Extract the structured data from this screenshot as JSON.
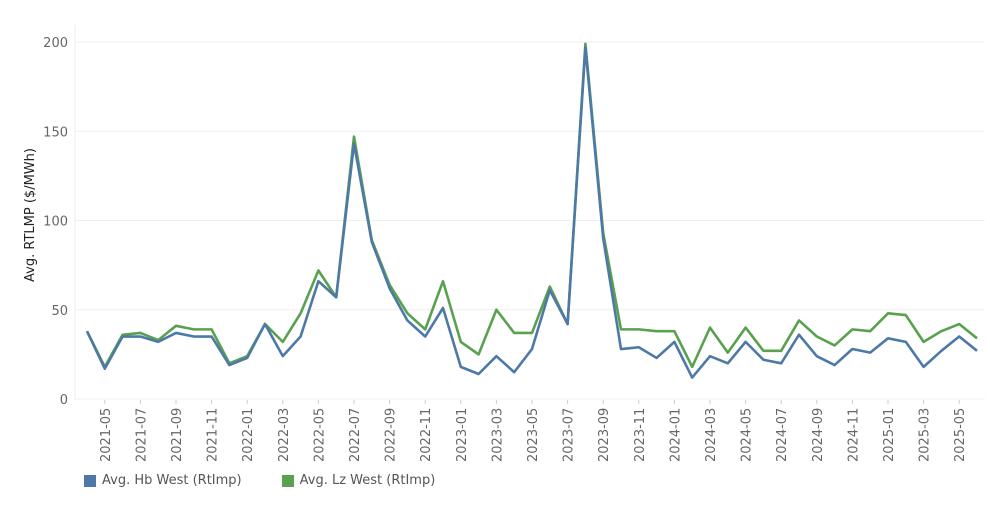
{
  "chart_data": {
    "type": "line",
    "title": "",
    "xlabel": "",
    "ylabel": "Avg. RTLMP ($/MWh)",
    "ylim": [
      0,
      200
    ],
    "yticks": [
      0,
      50,
      100,
      150,
      200
    ],
    "grid": true,
    "legend_position": "bottom-left",
    "x": [
      "2021-04",
      "2021-05",
      "2021-06",
      "2021-07",
      "2021-08",
      "2021-09",
      "2021-10",
      "2021-11",
      "2021-12",
      "2022-01",
      "2022-02",
      "2022-03",
      "2022-04",
      "2022-05",
      "2022-06",
      "2022-07",
      "2022-08",
      "2022-09",
      "2022-10",
      "2022-11",
      "2022-12",
      "2023-01",
      "2023-02",
      "2023-03",
      "2023-04",
      "2023-05",
      "2023-06",
      "2023-07",
      "2023-08",
      "2023-09",
      "2023-10",
      "2023-11",
      "2023-12",
      "2024-01",
      "2024-02",
      "2024-03",
      "2024-04",
      "2024-05",
      "2024-06",
      "2024-07",
      "2024-08",
      "2024-09",
      "2024-10",
      "2024-11",
      "2024-12",
      "2025-01",
      "2025-02",
      "2025-03",
      "2025-04",
      "2025-05",
      "2025-06"
    ],
    "xtick_labels": [
      "2021-05",
      "2021-07",
      "2021-09",
      "2021-11",
      "2022-01",
      "2022-03",
      "2022-05",
      "2022-07",
      "2022-09",
      "2022-11",
      "2023-01",
      "2023-03",
      "2023-05",
      "2023-07",
      "2023-09",
      "2023-11",
      "2024-01",
      "2024-03",
      "2024-05",
      "2024-07",
      "2024-09",
      "2024-11",
      "2025-01",
      "2025-03",
      "2025-05"
    ],
    "series": [
      {
        "name": "Avg. Hb West (RtImp)",
        "color": "#4e79a7",
        "values": [
          38,
          17,
          35,
          35,
          32,
          37,
          35,
          35,
          19,
          23,
          42,
          24,
          35,
          66,
          57,
          143,
          88,
          62,
          44,
          35,
          51,
          18,
          14,
          24,
          15,
          28,
          61,
          42,
          197,
          90,
          28,
          29,
          23,
          32,
          12,
          24,
          20,
          32,
          22,
          20,
          36,
          24,
          19,
          28,
          26,
          34,
          32,
          18,
          27,
          35,
          27
        ]
      },
      {
        "name": "Avg. Lz West (RtImp)",
        "color": "#59a14f",
        "values": [
          38,
          18,
          36,
          37,
          33,
          41,
          39,
          39,
          20,
          24,
          42,
          32,
          48,
          72,
          57,
          147,
          89,
          64,
          48,
          39,
          66,
          32,
          25,
          50,
          37,
          37,
          63,
          42,
          199,
          93,
          39,
          39,
          38,
          38,
          18,
          40,
          26,
          40,
          27,
          27,
          44,
          35,
          30,
          39,
          38,
          48,
          47,
          32,
          38,
          42,
          34
        ]
      }
    ]
  }
}
